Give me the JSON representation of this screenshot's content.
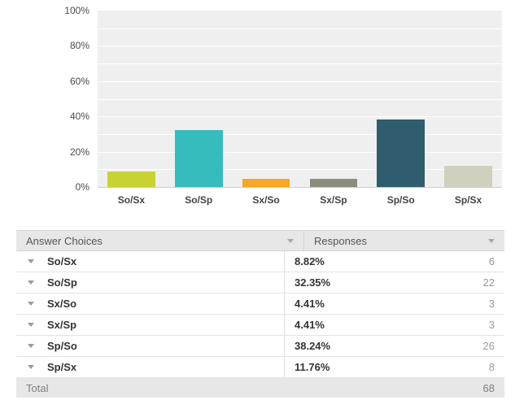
{
  "chart_data": {
    "type": "bar",
    "title": "",
    "xlabel": "",
    "ylabel": "",
    "categories": [
      "So/Sx",
      "So/Sp",
      "Sx/So",
      "Sx/Sp",
      "Sp/So",
      "Sp/Sx"
    ],
    "values": [
      8.82,
      32.35,
      4.41,
      4.41,
      38.24,
      11.76
    ],
    "counts": [
      6,
      22,
      3,
      3,
      26,
      8
    ],
    "bar_colors": [
      "#c9d233",
      "#37bcbe",
      "#f6a723",
      "#8b8d7c",
      "#305d6e",
      "#d1cfbd"
    ],
    "ylim": [
      0,
      100
    ],
    "y_ticks": [
      "100%",
      "80%",
      "60%",
      "40%",
      "20%",
      "0%"
    ],
    "grid": true,
    "legend_position": "none"
  },
  "table": {
    "header": {
      "answer_choices": "Answer Choices",
      "responses": "Responses"
    },
    "rows": [
      {
        "choice": "So/Sx",
        "percent": "8.82%",
        "count": "6"
      },
      {
        "choice": "So/Sp",
        "percent": "32.35%",
        "count": "22"
      },
      {
        "choice": "Sx/So",
        "percent": "4.41%",
        "count": "3"
      },
      {
        "choice": "Sx/Sp",
        "percent": "4.41%",
        "count": "3"
      },
      {
        "choice": "Sp/So",
        "percent": "38.24%",
        "count": "26"
      },
      {
        "choice": "Sp/Sx",
        "percent": "11.76%",
        "count": "8"
      }
    ],
    "total": {
      "label": "Total",
      "count": "68"
    }
  },
  "colors": {
    "plot_background": "#efefef",
    "gridline": "#ffffff",
    "axis_line": "#cccccc",
    "header_background": "#e7e7e7",
    "total_background": "#e7e7e7",
    "row_border": "#e3e3e3",
    "table_border": "#d4d4d4"
  }
}
